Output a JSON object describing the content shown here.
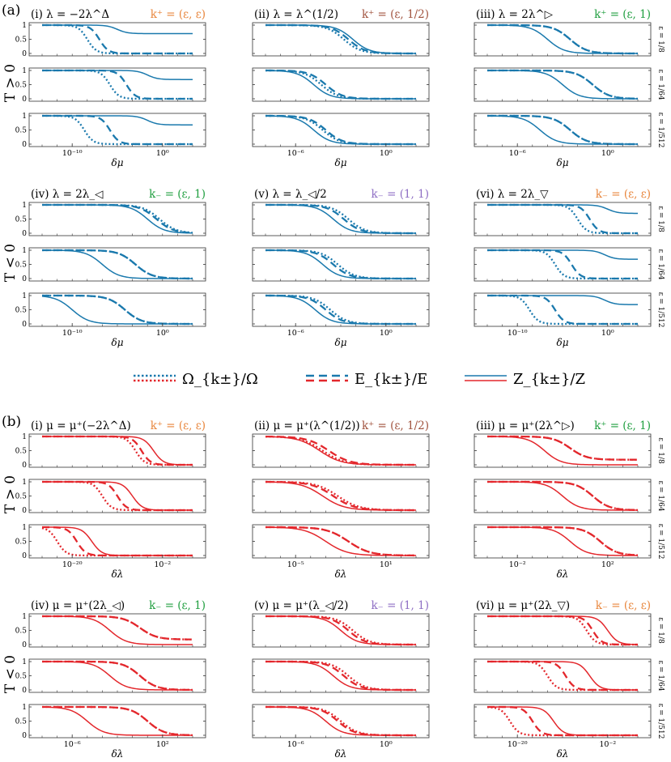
{
  "figure": {
    "legend": {
      "entries": [
        {
          "style": "dotted",
          "label": "Ω_{k±}/Ω"
        },
        {
          "style": "dashed",
          "label": "E_{k±}/E"
        },
        {
          "style": "solid",
          "label": "Z_{k±}/Z"
        }
      ]
    },
    "colors": {
      "blue": "#1a79ad",
      "red": "#e3272c",
      "green": "#1f9e3f",
      "orange": "#e8853b",
      "brown": "#a0523d",
      "purple": "#8e6ec4"
    },
    "epsilon_labels": [
      "ε = 1/8",
      "ε = 1/64",
      "ε = 1/512"
    ],
    "sections": [
      {
        "tag": "(a)",
        "xlabel": "δμ",
        "ytick_labels": [
          "0",
          "0.5",
          "1"
        ],
        "color": "blue",
        "row_groups": [
          {
            "ylabel": "T > 0",
            "panels": [
              {
                "title": "(i)  λ = −2λ^Δ",
                "k_label": "k⁺ = (ε, ε)",
                "k_color": "orange",
                "xticks": [
                  "10⁻¹⁰",
                  "10⁰"
                ]
              },
              {
                "title": "(ii)  λ = λ^(1/2)",
                "k_label": "k⁺ = (ε, 1/2)",
                "k_color": "brown",
                "xticks": [
                  "10⁻⁶",
                  "10⁰"
                ]
              },
              {
                "title": "(iii)  λ = 2λ^▷",
                "k_label": "k⁺ = (ε, 1)",
                "k_color": "green",
                "xticks": [
                  "10⁻⁶",
                  "10⁰"
                ]
              }
            ]
          },
          {
            "ylabel": "T < 0",
            "panels": [
              {
                "title": "(iv)  λ = 2λ_◁",
                "k_label": "k₋ = (ε, 1)",
                "k_color": "green",
                "xticks": [
                  "10⁻¹⁰",
                  "10⁰"
                ]
              },
              {
                "title": "(v)  λ = λ_◁/2",
                "k_label": "k₋ = (1, 1)",
                "k_color": "purple",
                "xticks": [
                  "10⁻⁶",
                  "10⁰"
                ]
              },
              {
                "title": "(vi)  λ = 2λ_▽",
                "k_label": "k₋ = (ε, ε)",
                "k_color": "orange",
                "xticks": [
                  "10⁻¹⁰",
                  "10⁰"
                ]
              }
            ]
          }
        ]
      },
      {
        "tag": "(b)",
        "xlabel": "δλ",
        "ytick_labels": [
          "0",
          "0.5",
          "1"
        ],
        "color": "red",
        "row_groups": [
          {
            "ylabel": "T > 0",
            "panels": [
              {
                "title": "(i)  μ = μ⁺(−2λ^Δ)",
                "k_label": "k⁺ = (ε, ε)",
                "k_color": "orange",
                "xticks": [
                  "10⁻²⁰",
                  "10⁻²"
                ]
              },
              {
                "title": "(ii)  μ = μ⁺(λ^(1/2))",
                "k_label": "k⁺ = (ε, 1/2)",
                "k_color": "brown",
                "xticks": [
                  "10⁻⁵",
                  "10¹"
                ]
              },
              {
                "title": "(iii)  μ = μ⁺(2λ^▷)",
                "k_label": "k⁺ = (ε, 1)",
                "k_color": "green",
                "xticks": [
                  "10⁻²",
                  "10²"
                ]
              }
            ]
          },
          {
            "ylabel": "T < 0",
            "panels": [
              {
                "title": "(iv)  μ = μ⁺(2λ_◁)",
                "k_label": "k₋ = (ε, 1)",
                "k_color": "green",
                "xticks": [
                  "10⁻⁶",
                  "10²"
                ]
              },
              {
                "title": "(v)  μ = μ⁺(λ_◁/2)",
                "k_label": "k₋ = (1, 1)",
                "k_color": "purple",
                "xticks": [
                  "10⁻⁶",
                  "10⁰"
                ]
              },
              {
                "title": "(vi)  μ = μ⁺(2λ_▽)",
                "k_label": "k₋ = (ε, ε)",
                "k_color": "orange",
                "xticks": [
                  "10⁻²⁰",
                  "10⁻²"
                ]
              }
            ]
          }
        ]
      }
    ]
  },
  "chart_data": {
    "type": "line",
    "ylim": [
      0,
      1
    ],
    "curve_model": "sigmoid decay in log x: y = hi + (1 - hi) / (1 + exp(k * (x - c))); each curve lists [c, k, hi] in fractions of the x-range",
    "panels": [
      {
        "section": "a",
        "panel": "i",
        "curves": [
          [
            [
              0.3,
              34,
              0
            ],
            [
              0.38,
              34,
              0
            ],
            [
              0.5,
              30,
              0.7
            ]
          ],
          [
            [
              0.45,
              34,
              0
            ],
            [
              0.56,
              34,
              0
            ],
            [
              0.7,
              30,
              0.68
            ]
          ],
          [
            [
              0.28,
              34,
              0
            ],
            [
              0.45,
              34,
              0
            ],
            [
              0.7,
              30,
              0.68
            ]
          ]
        ]
      },
      {
        "section": "a",
        "panel": "ii",
        "curves": [
          [
            [
              0.52,
              18,
              0
            ],
            [
              0.55,
              18,
              0
            ],
            [
              0.58,
              18,
              0
            ]
          ],
          [
            [
              0.37,
              18,
              0
            ],
            [
              0.4,
              18,
              0
            ],
            [
              0.32,
              18,
              0
            ]
          ],
          [
            [
              0.38,
              18,
              0
            ],
            [
              0.4,
              18,
              0
            ],
            [
              0.32,
              18,
              0
            ]
          ]
        ]
      },
      {
        "section": "a",
        "panel": "iii",
        "curves": [
          [
            [
              0.55,
              18,
              0
            ],
            [
              0.55,
              18,
              0
            ],
            [
              0.4,
              18,
              0
            ]
          ],
          [
            [
              0.7,
              18,
              0
            ],
            [
              0.7,
              18,
              0
            ],
            [
              0.5,
              18,
              0
            ]
          ],
          [
            [
              0.55,
              18,
              0
            ],
            [
              0.55,
              18,
              0
            ],
            [
              0.35,
              18,
              0
            ]
          ]
        ]
      },
      {
        "section": "a",
        "panel": "iv",
        "curves": [
          [
            [
              0.78,
              18,
              0
            ],
            [
              0.76,
              18,
              0
            ],
            [
              0.7,
              18,
              0
            ]
          ],
          [
            [
              0.62,
              18,
              0
            ],
            [
              0.62,
              18,
              0
            ],
            [
              0.4,
              18,
              0
            ]
          ],
          [
            [
              0.55,
              18,
              0
            ],
            [
              0.55,
              18,
              0
            ],
            [
              0.2,
              18,
              0
            ]
          ]
        ]
      },
      {
        "section": "a",
        "panel": "v",
        "curves": [
          [
            [
              0.55,
              18,
              0
            ],
            [
              0.52,
              18,
              0
            ],
            [
              0.45,
              18,
              0
            ]
          ],
          [
            [
              0.48,
              18,
              0
            ],
            [
              0.45,
              18,
              0
            ],
            [
              0.38,
              18,
              0
            ]
          ],
          [
            [
              0.43,
              18,
              0
            ],
            [
              0.4,
              18,
              0
            ],
            [
              0.33,
              18,
              0
            ]
          ]
        ]
      },
      {
        "section": "a",
        "panel": "vi",
        "curves": [
          [
            [
              0.6,
              34,
              0
            ],
            [
              0.68,
              34,
              0
            ],
            [
              0.8,
              30,
              0.7
            ]
          ],
          [
            [
              0.45,
              34,
              0
            ],
            [
              0.56,
              34,
              0
            ],
            [
              0.78,
              30,
              0.68
            ]
          ],
          [
            [
              0.28,
              34,
              0
            ],
            [
              0.45,
              34,
              0
            ],
            [
              0.78,
              30,
              0.68
            ]
          ]
        ]
      },
      {
        "section": "b",
        "panel": "i",
        "curves": [
          [
            [
              0.62,
              34,
              0
            ],
            [
              0.66,
              34,
              0
            ],
            [
              0.74,
              30,
              0
            ]
          ],
          [
            [
              0.4,
              34,
              0
            ],
            [
              0.5,
              34,
              0
            ],
            [
              0.6,
              30,
              0
            ]
          ],
          [
            [
              0.1,
              34,
              0
            ],
            [
              0.23,
              34,
              0
            ],
            [
              0.33,
              30,
              0
            ]
          ]
        ]
      },
      {
        "section": "b",
        "panel": "ii",
        "curves": [
          [
            [
              0.38,
              14,
              0
            ],
            [
              0.42,
              14,
              0
            ],
            [
              0.36,
              14,
              0
            ]
          ],
          [
            [
              0.48,
              14,
              0
            ],
            [
              0.45,
              14,
              0
            ],
            [
              0.38,
              14,
              0
            ]
          ],
          [
            [
              0.55,
              14,
              0
            ],
            [
              0.55,
              14,
              0
            ],
            [
              0.4,
              14,
              0
            ]
          ]
        ]
      },
      {
        "section": "b",
        "panel": "iii",
        "curves": [
          [
            [
              0.55,
              18,
              0.18
            ],
            [
              0.55,
              18,
              0.18
            ],
            [
              0.38,
              18,
              0
            ]
          ],
          [
            [
              0.7,
              18,
              0
            ],
            [
              0.7,
              18,
              0
            ],
            [
              0.5,
              18,
              0
            ]
          ],
          [
            [
              0.75,
              18,
              0
            ],
            [
              0.75,
              18,
              0
            ],
            [
              0.55,
              18,
              0
            ]
          ]
        ]
      },
      {
        "section": "b",
        "panel": "iv",
        "curves": [
          [
            [
              0.65,
              18,
              0.18
            ],
            [
              0.65,
              18,
              0.18
            ],
            [
              0.45,
              18,
              0
            ]
          ],
          [
            [
              0.65,
              18,
              0
            ],
            [
              0.65,
              18,
              0
            ],
            [
              0.45,
              18,
              0
            ]
          ],
          [
            [
              0.7,
              18,
              0
            ],
            [
              0.7,
              18,
              0
            ],
            [
              0.3,
              18,
              0
            ]
          ]
        ]
      },
      {
        "section": "b",
        "panel": "v",
        "curves": [
          [
            [
              0.58,
              18,
              0
            ],
            [
              0.55,
              18,
              0
            ],
            [
              0.5,
              18,
              0
            ]
          ],
          [
            [
              0.55,
              18,
              0
            ],
            [
              0.52,
              18,
              0
            ],
            [
              0.45,
              18,
              0
            ]
          ],
          [
            [
              0.5,
              18,
              0
            ],
            [
              0.48,
              18,
              0
            ],
            [
              0.4,
              18,
              0
            ]
          ]
        ]
      },
      {
        "section": "b",
        "panel": "vi",
        "curves": [
          [
            [
              0.66,
              34,
              0
            ],
            [
              0.7,
              34,
              0
            ],
            [
              0.8,
              30,
              0
            ]
          ],
          [
            [
              0.4,
              34,
              0
            ],
            [
              0.52,
              34,
              0
            ],
            [
              0.68,
              30,
              0
            ]
          ],
          [
            [
              0.15,
              34,
              0
            ],
            [
              0.3,
              34,
              0
            ],
            [
              0.44,
              30,
              0
            ]
          ]
        ]
      }
    ]
  }
}
